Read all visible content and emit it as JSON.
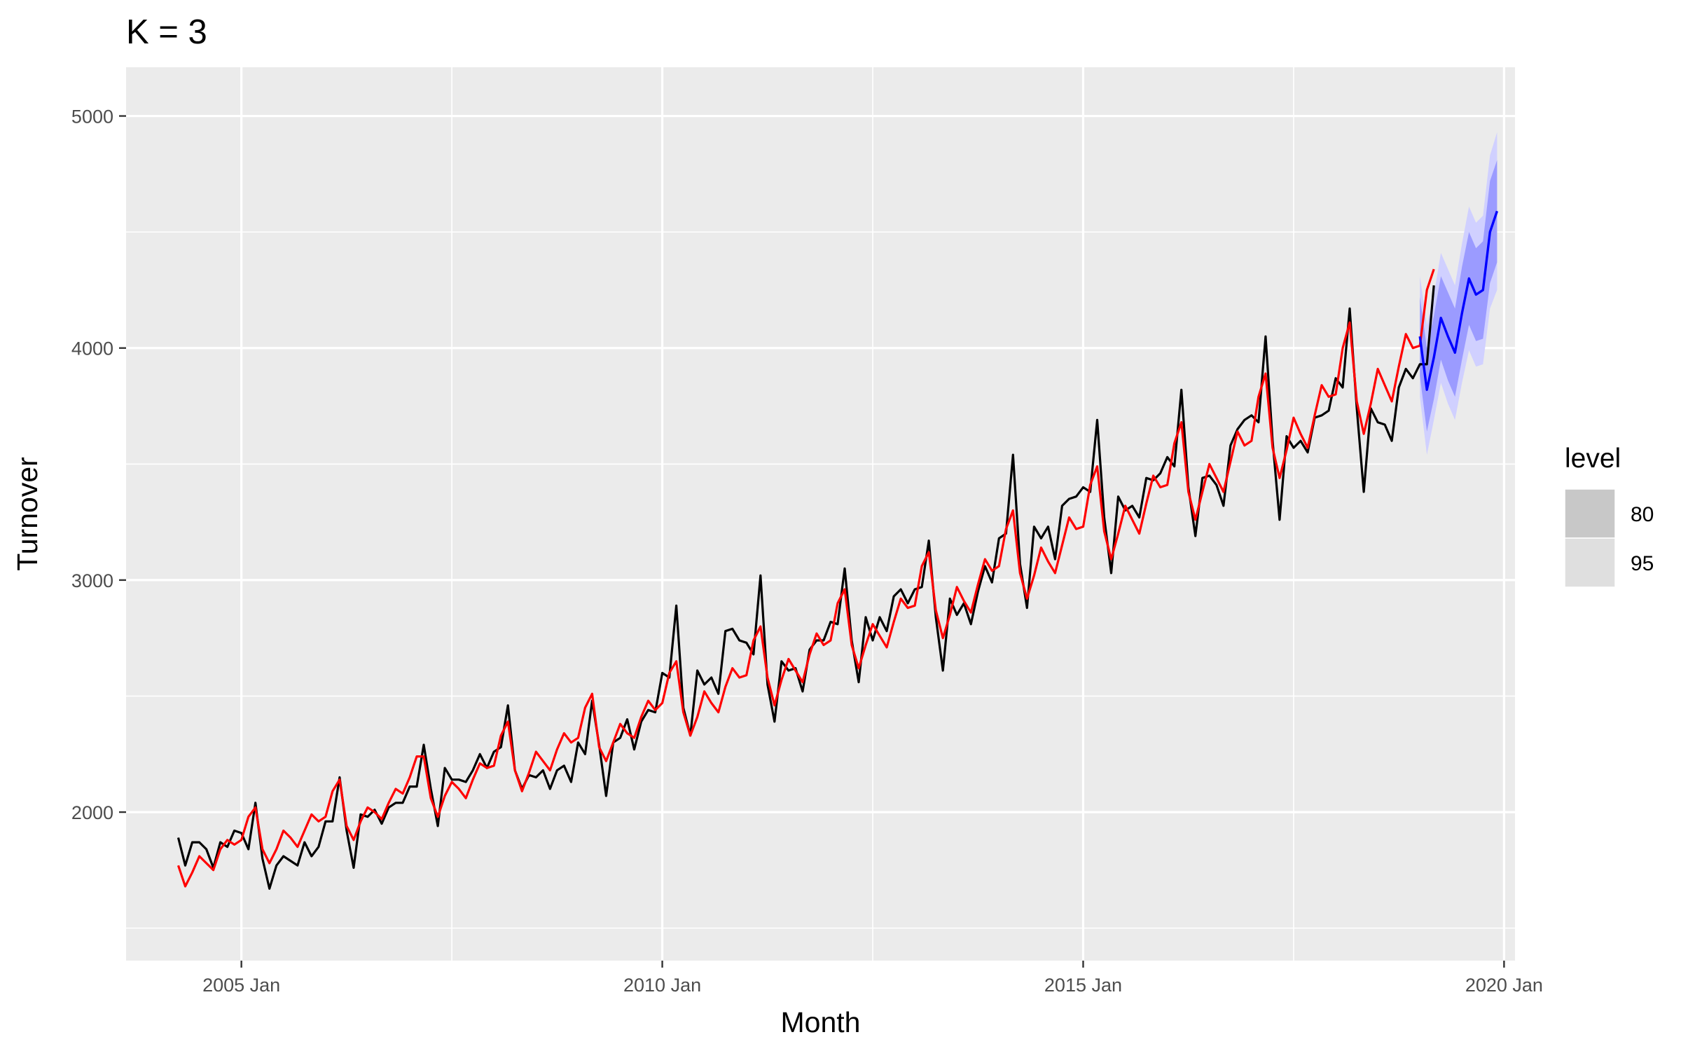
{
  "chart_data": {
    "type": "line",
    "title": "K = 3",
    "xlabel": "Month",
    "ylabel": "Turnover",
    "xlim": [
      2003.63,
      2020.13
    ],
    "ylim": [
      1360,
      5210
    ],
    "x_ticks": [
      {
        "value": 2005,
        "label": "2005 Jan"
      },
      {
        "value": 2010,
        "label": "2010 Jan"
      },
      {
        "value": 2015,
        "label": "2015 Jan"
      },
      {
        "value": 2020,
        "label": "2020 Jan"
      }
    ],
    "y_ticks": [
      {
        "value": 2000,
        "label": "2000"
      },
      {
        "value": 3000,
        "label": "3000"
      },
      {
        "value": 4000,
        "label": "4000"
      },
      {
        "value": 5000,
        "label": "5000"
      }
    ],
    "grid": true,
    "legend": {
      "title": "level",
      "position": "right",
      "entries": [
        {
          "label": "80",
          "color": "#c8c8c8"
        },
        {
          "label": "95",
          "color": "#dfdfdf"
        }
      ]
    },
    "colors": {
      "actual": "#000000",
      "fitted": "#ff0000",
      "forecast": "#0000ff",
      "band80": "#9b9bff",
      "band95": "#d0d0ff",
      "panel": "#ebebeb",
      "grid": "#ffffff"
    },
    "actual": {
      "start": [
        2004,
        4
      ],
      "values": [
        1890,
        1770,
        1870,
        1870,
        1840,
        1760,
        1870,
        1850,
        1920,
        1910,
        1840,
        2040,
        1800,
        1670,
        1770,
        1810,
        1790,
        1770,
        1870,
        1810,
        1850,
        1960,
        1960,
        2150,
        1920,
        1760,
        1990,
        1980,
        2010,
        1950,
        2020,
        2040,
        2040,
        2110,
        2110,
        2290,
        2100,
        1940,
        2190,
        2140,
        2140,
        2130,
        2180,
        2250,
        2190,
        2260,
        2280,
        2460,
        2180,
        2100,
        2160,
        2150,
        2180,
        2100,
        2180,
        2200,
        2130,
        2300,
        2250,
        2480,
        2290,
        2070,
        2300,
        2320,
        2400,
        2270,
        2390,
        2440,
        2430,
        2600,
        2580,
        2890,
        2450,
        2330,
        2610,
        2550,
        2580,
        2510,
        2780,
        2790,
        2740,
        2730,
        2680,
        3020,
        2550,
        2390,
        2650,
        2610,
        2620,
        2520,
        2700,
        2740,
        2740,
        2820,
        2810,
        3050,
        2740,
        2560,
        2840,
        2740,
        2840,
        2780,
        2930,
        2960,
        2900,
        2960,
        2970,
        3170,
        2840,
        2610,
        2920,
        2850,
        2900,
        2810,
        2950,
        3060,
        2990,
        3180,
        3200,
        3540,
        3070,
        2880,
        3230,
        3180,
        3230,
        3090,
        3320,
        3350,
        3360,
        3400,
        3380,
        3690,
        3270,
        3030,
        3360,
        3300,
        3320,
        3270,
        3440,
        3430,
        3460,
        3530,
        3490,
        3820,
        3400,
        3190,
        3440,
        3450,
        3410,
        3320,
        3580,
        3650,
        3690,
        3710,
        3680,
        4050,
        3600,
        3260,
        3620,
        3570,
        3600,
        3550,
        3700,
        3710,
        3730,
        3870,
        3830,
        4170,
        3740,
        3380,
        3740,
        3680,
        3670,
        3600,
        3830,
        3910,
        3870,
        3930,
        3930,
        4270
      ]
    },
    "fitted": {
      "start": [
        2004,
        4
      ],
      "values": [
        1770,
        1680,
        1740,
        1810,
        1780,
        1750,
        1840,
        1880,
        1860,
        1880,
        1980,
        2020,
        1840,
        1780,
        1840,
        1920,
        1890,
        1850,
        1920,
        1990,
        1960,
        1980,
        2090,
        2140,
        1940,
        1880,
        1960,
        2020,
        2000,
        1970,
        2040,
        2100,
        2080,
        2150,
        2240,
        2240,
        2060,
        1980,
        2070,
        2130,
        2100,
        2060,
        2140,
        2210,
        2190,
        2200,
        2330,
        2390,
        2180,
        2090,
        2170,
        2260,
        2220,
        2180,
        2270,
        2340,
        2300,
        2320,
        2450,
        2510,
        2280,
        2220,
        2300,
        2380,
        2340,
        2320,
        2410,
        2480,
        2440,
        2470,
        2600,
        2650,
        2430,
        2330,
        2410,
        2520,
        2470,
        2430,
        2540,
        2620,
        2580,
        2590,
        2740,
        2800,
        2580,
        2460,
        2570,
        2660,
        2610,
        2560,
        2680,
        2770,
        2720,
        2740,
        2900,
        2960,
        2720,
        2620,
        2720,
        2810,
        2760,
        2710,
        2820,
        2920,
        2880,
        2890,
        3060,
        3120,
        2870,
        2750,
        2850,
        2970,
        2910,
        2860,
        2980,
        3090,
        3040,
        3060,
        3220,
        3300,
        3030,
        2920,
        3020,
        3140,
        3080,
        3030,
        3150,
        3270,
        3220,
        3230,
        3410,
        3490,
        3210,
        3090,
        3200,
        3320,
        3260,
        3200,
        3330,
        3450,
        3400,
        3410,
        3590,
        3680,
        3380,
        3260,
        3380,
        3500,
        3440,
        3380,
        3510,
        3640,
        3580,
        3600,
        3790,
        3890,
        3570,
        3440,
        3560,
        3700,
        3630,
        3570,
        3710,
        3840,
        3790,
        3800,
        4000,
        4110,
        3770,
        3630,
        3760,
        3910,
        3840,
        3770,
        3920,
        4060,
        4000,
        4010,
        4250,
        4340
      ]
    },
    "forecast": {
      "start": [
        2019,
        1
      ],
      "mean": [
        4050,
        3820,
        3960,
        4130,
        4050,
        3980,
        4150,
        4300,
        4230,
        4250,
        4500,
        4590
      ],
      "lower80": [
        3880,
        3640,
        3780,
        3950,
        3860,
        3790,
        3950,
        4100,
        4030,
        4040,
        4280,
        4370
      ],
      "upper80": [
        4220,
        4000,
        4140,
        4310,
        4240,
        4170,
        4350,
        4500,
        4430,
        4460,
        4720,
        4810
      ],
      "lower95": [
        3790,
        3540,
        3690,
        3850,
        3760,
        3690,
        3850,
        3990,
        3920,
        3930,
        4170,
        4250
      ],
      "upper95": [
        4310,
        4100,
        4230,
        4410,
        4340,
        4270,
        4450,
        4610,
        4540,
        4570,
        4830,
        4930
      ]
    }
  }
}
